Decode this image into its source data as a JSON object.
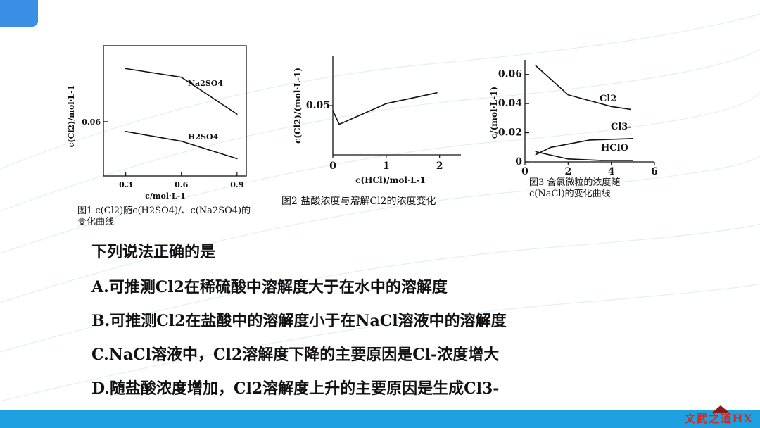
{
  "chart_data": [
    {
      "type": "line",
      "ylabel": "c(Cl2)/mol·L-1",
      "xlabel": "c/mol·L-1",
      "x_ticks": [
        "0.3",
        "0.6",
        "0.9"
      ],
      "y_ticks": [
        "0.06"
      ],
      "xlim": [
        0.18,
        0.95
      ],
      "ylim": [
        0.035,
        0.095
      ],
      "series": [
        {
          "name": "Na2SO4",
          "points": [
            [
              0.3,
              0.0845
            ],
            [
              0.6,
              0.0805
            ],
            [
              0.9,
              0.0635
            ]
          ]
        },
        {
          "name": "H2SO4",
          "points": [
            [
              0.3,
              0.0555
            ],
            [
              0.6,
              0.051
            ],
            [
              0.9,
              0.043
            ]
          ]
        }
      ],
      "caption_line1": "图1 c(Cl2)随c(H2SO4)/、c(Na2SO4)的",
      "caption_line2": "变化曲线"
    },
    {
      "type": "line",
      "ylabel": "c(Cl2)/(mol·L-1)",
      "xlabel": "c(HCl)/mol·L-1",
      "x_ticks": [
        "0",
        "1",
        "2"
      ],
      "y_ticks": [
        "0.05"
      ],
      "xlim": [
        0,
        2.4
      ],
      "ylim": [
        0.0,
        0.1
      ],
      "series": [
        {
          "name": "",
          "points": [
            [
              0,
              0.045
            ],
            [
              0.12,
              0.031
            ],
            [
              1.0,
              0.052
            ],
            [
              1.95,
              0.063
            ]
          ]
        }
      ],
      "caption": "图2 盐酸浓度与溶解Cl2的浓度变化"
    },
    {
      "type": "line",
      "ylabel": "c/(mol·L-1)",
      "xlabel": "",
      "x_ticks": [
        "0",
        "2",
        "4",
        "6"
      ],
      "y_ticks": [
        "0",
        "0.02",
        "0.04",
        "0.06"
      ],
      "xlim": [
        0,
        6
      ],
      "ylim": [
        0,
        0.07
      ],
      "series": [
        {
          "name": "Cl2",
          "points": [
            [
              0.5,
              0.066
            ],
            [
              2,
              0.046
            ],
            [
              4,
              0.038
            ],
            [
              4.9,
              0.036
            ]
          ]
        },
        {
          "name": "Cl3-",
          "points": [
            [
              0.5,
              0.005
            ],
            [
              1.2,
              0.01
            ],
            [
              3,
              0.015
            ],
            [
              5,
              0.016
            ]
          ]
        },
        {
          "name": "HClO",
          "points": [
            [
              0.5,
              0.007
            ],
            [
              2,
              0.002
            ],
            [
              3.5,
              0.001
            ],
            [
              5,
              0.001
            ]
          ]
        }
      ],
      "caption_line1": "图3 含氯微粒的浓度随",
      "caption_line2": "c(NaCl)的变化曲线"
    }
  ],
  "question": {
    "stem": "下列说法正确的是",
    "options": [
      "A.可推测Cl2在稀硫酸中溶解度大于在水中的溶解度",
      "B.可推测Cl2在盐酸中的溶解度小于在NaCl溶液中的溶解度",
      "C.NaCl溶液中，Cl2溶解度下降的主要原因是Cl-浓度增大",
      "D.随盐酸浓度增加，Cl2溶解度上升的主要原因是生成Cl3-"
    ]
  },
  "watermark": "文武之道HX",
  "colors": {
    "accent": "#3a8ee6",
    "bar": "#1fa0e0",
    "watermark": "#d42a1e"
  }
}
